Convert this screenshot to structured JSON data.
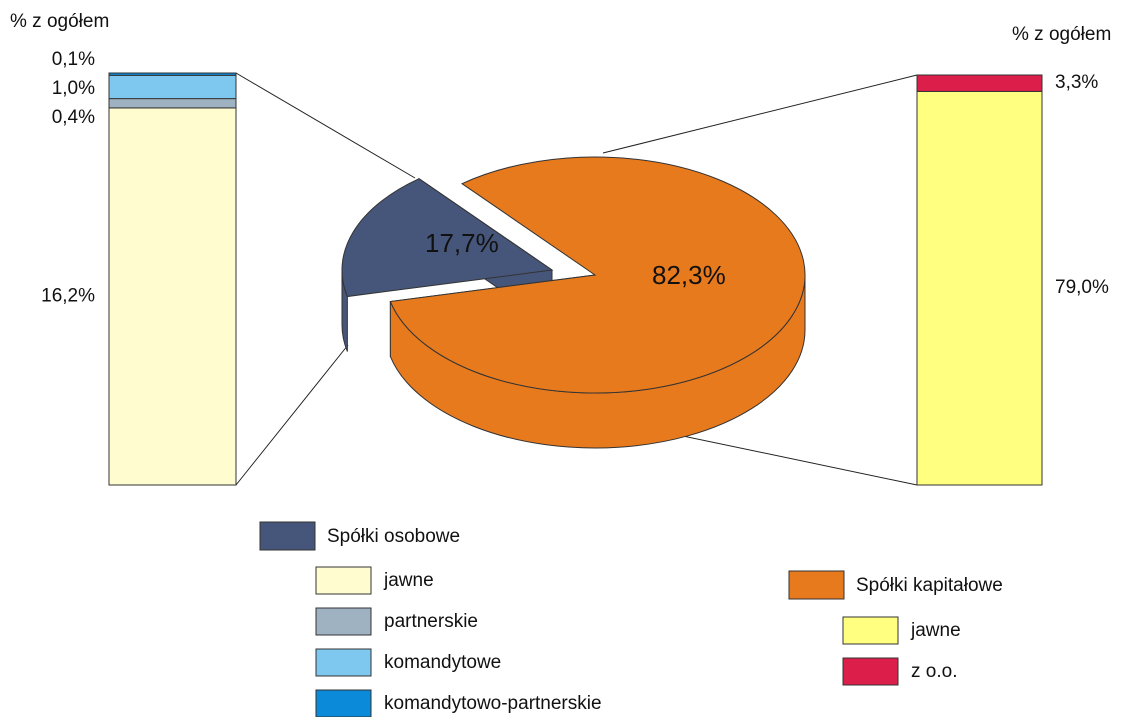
{
  "chart_data": [
    {
      "type": "pie",
      "categories": [
        "Spółki osobowe",
        "Spółki kapitałowe"
      ],
      "values": [
        17.7,
        82.3
      ],
      "value_labels": [
        "17,7%",
        "82,3%"
      ],
      "colors": [
        "#46567a",
        "#e87a1e"
      ]
    },
    {
      "type": "bar",
      "stacked": true,
      "y_label": "% z ogółem",
      "series": [
        {
          "name": "jawne",
          "color": "#fffdd0",
          "values": [
            16.2
          ],
          "value_labels": [
            "16,2%"
          ]
        },
        {
          "name": "partnerskie",
          "color": "#9fb2c2",
          "values": [
            0.4
          ],
          "value_labels": [
            "0,4%"
          ]
        },
        {
          "name": "komandytowe",
          "color": "#7ec8f0",
          "values": [
            1.0
          ],
          "value_labels": [
            "1,0%"
          ]
        },
        {
          "name": "komandytowo-partnerskie",
          "color": "#0a8ad8",
          "values": [
            0.1
          ],
          "value_labels": [
            "0,1%"
          ]
        }
      ]
    },
    {
      "type": "bar",
      "stacked": true,
      "y_label": "% z ogółem",
      "series": [
        {
          "name": "jawne",
          "color": "#ffff80",
          "values": [
            79.0
          ],
          "value_labels": [
            "79,0%"
          ]
        },
        {
          "name": "z o.o.",
          "color": "#dc1e4a",
          "values": [
            3.3
          ],
          "value_labels": [
            "3,3%"
          ]
        }
      ]
    }
  ]
}
